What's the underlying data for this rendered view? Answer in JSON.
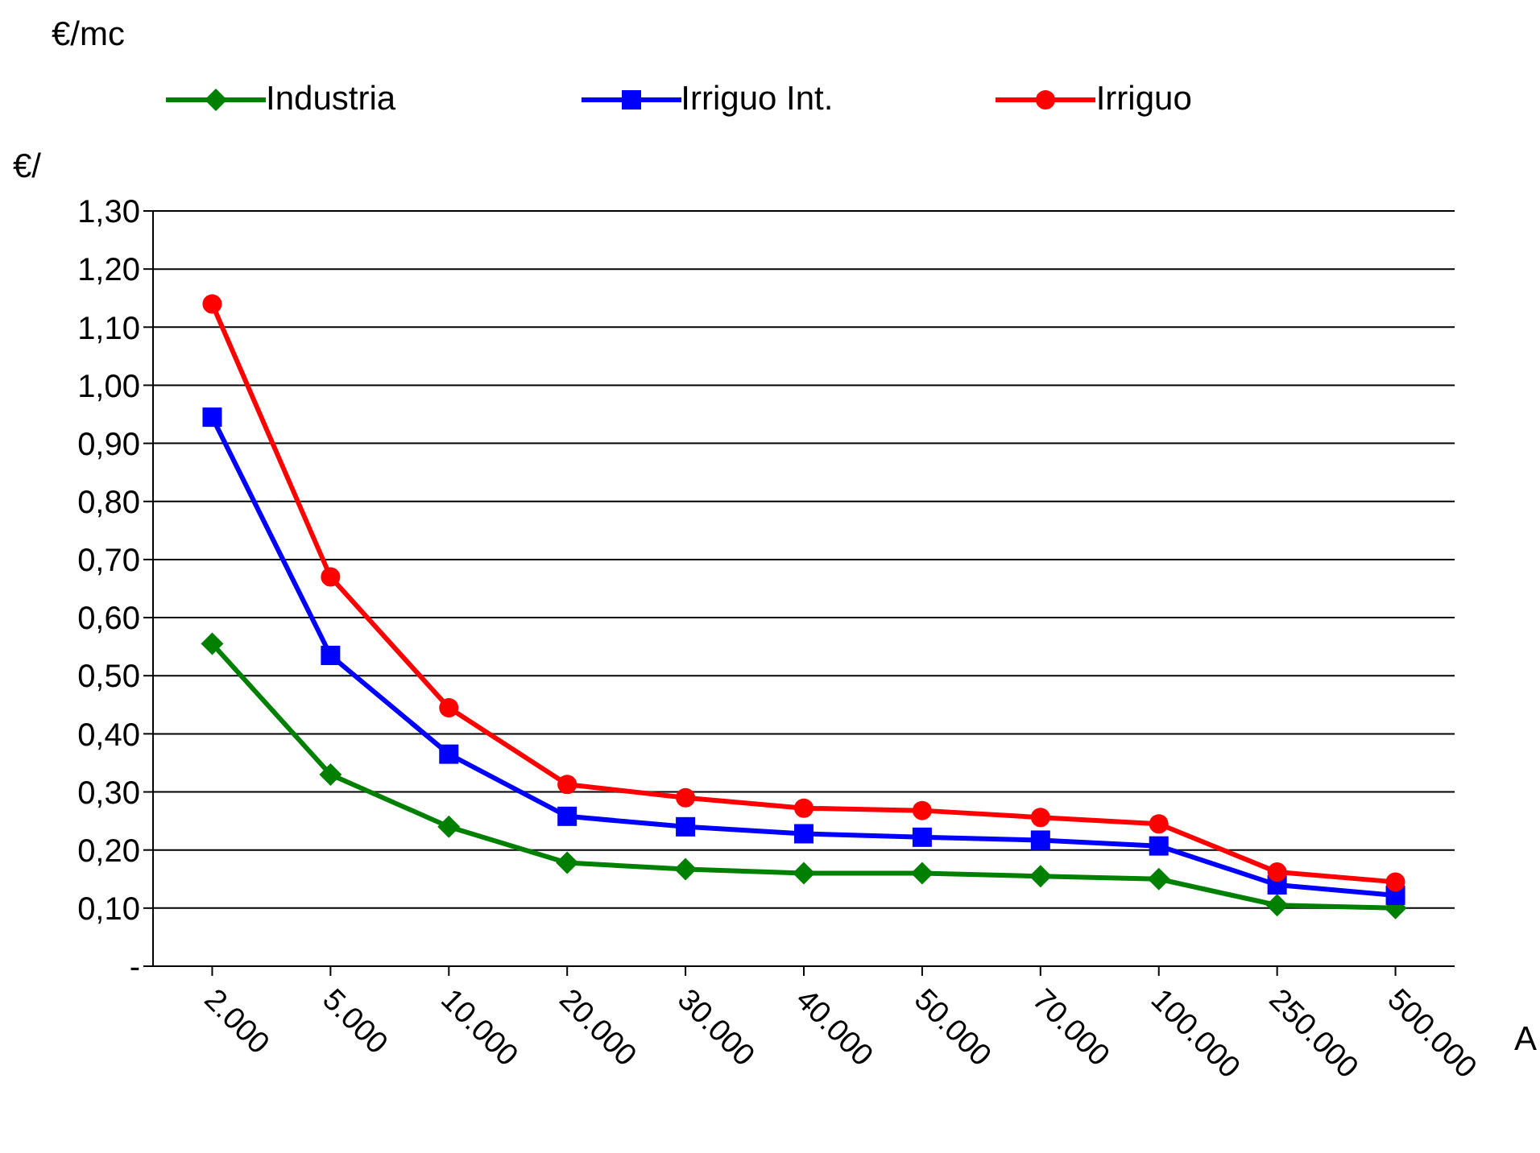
{
  "chart_data": {
    "type": "line",
    "title": "€/mc",
    "ylabel": "€/",
    "xlabel": "A",
    "categories": [
      "2.000",
      "5.000",
      "10.000",
      "20.000",
      "30.000",
      "40.000",
      "50.000",
      "70.000",
      "100.000",
      "250.000",
      "500.000"
    ],
    "series": [
      {
        "name": "Industria",
        "color": "#008000",
        "marker": "diamond",
        "values": [
          0.555,
          0.33,
          0.24,
          0.178,
          0.167,
          0.16,
          0.16,
          0.155,
          0.15,
          0.105,
          0.1
        ]
      },
      {
        "name": "Irriguo Int.",
        "color": "#0000ff",
        "marker": "square",
        "values": [
          0.945,
          0.535,
          0.365,
          0.258,
          0.24,
          0.228,
          0.222,
          0.217,
          0.207,
          0.14,
          0.122
        ]
      },
      {
        "name": "Irriguo",
        "color": "#ff0000",
        "marker": "circle",
        "values": [
          1.14,
          0.67,
          0.445,
          0.313,
          0.29,
          0.272,
          0.268,
          0.256,
          0.245,
          0.162,
          0.145
        ]
      }
    ],
    "ylim": [
      0,
      1.3
    ],
    "yticks": [
      {
        "value": 0,
        "label": "-"
      },
      {
        "value": 0.1,
        "label": "0,10"
      },
      {
        "value": 0.2,
        "label": "0,20"
      },
      {
        "value": 0.3,
        "label": "0,30"
      },
      {
        "value": 0.4,
        "label": "0,40"
      },
      {
        "value": 0.5,
        "label": "0,50"
      },
      {
        "value": 0.6,
        "label": "0,60"
      },
      {
        "value": 0.7,
        "label": "0,70"
      },
      {
        "value": 0.8,
        "label": "0,80"
      },
      {
        "value": 0.9,
        "label": "0,90"
      },
      {
        "value": 1.0,
        "label": "1,00"
      },
      {
        "value": 1.1,
        "label": "1,10"
      },
      {
        "value": 1.2,
        "label": "1,20"
      },
      {
        "value": 1.3,
        "label": "1,30"
      }
    ],
    "grid": "y",
    "legend": "top",
    "line_style": "solid"
  }
}
